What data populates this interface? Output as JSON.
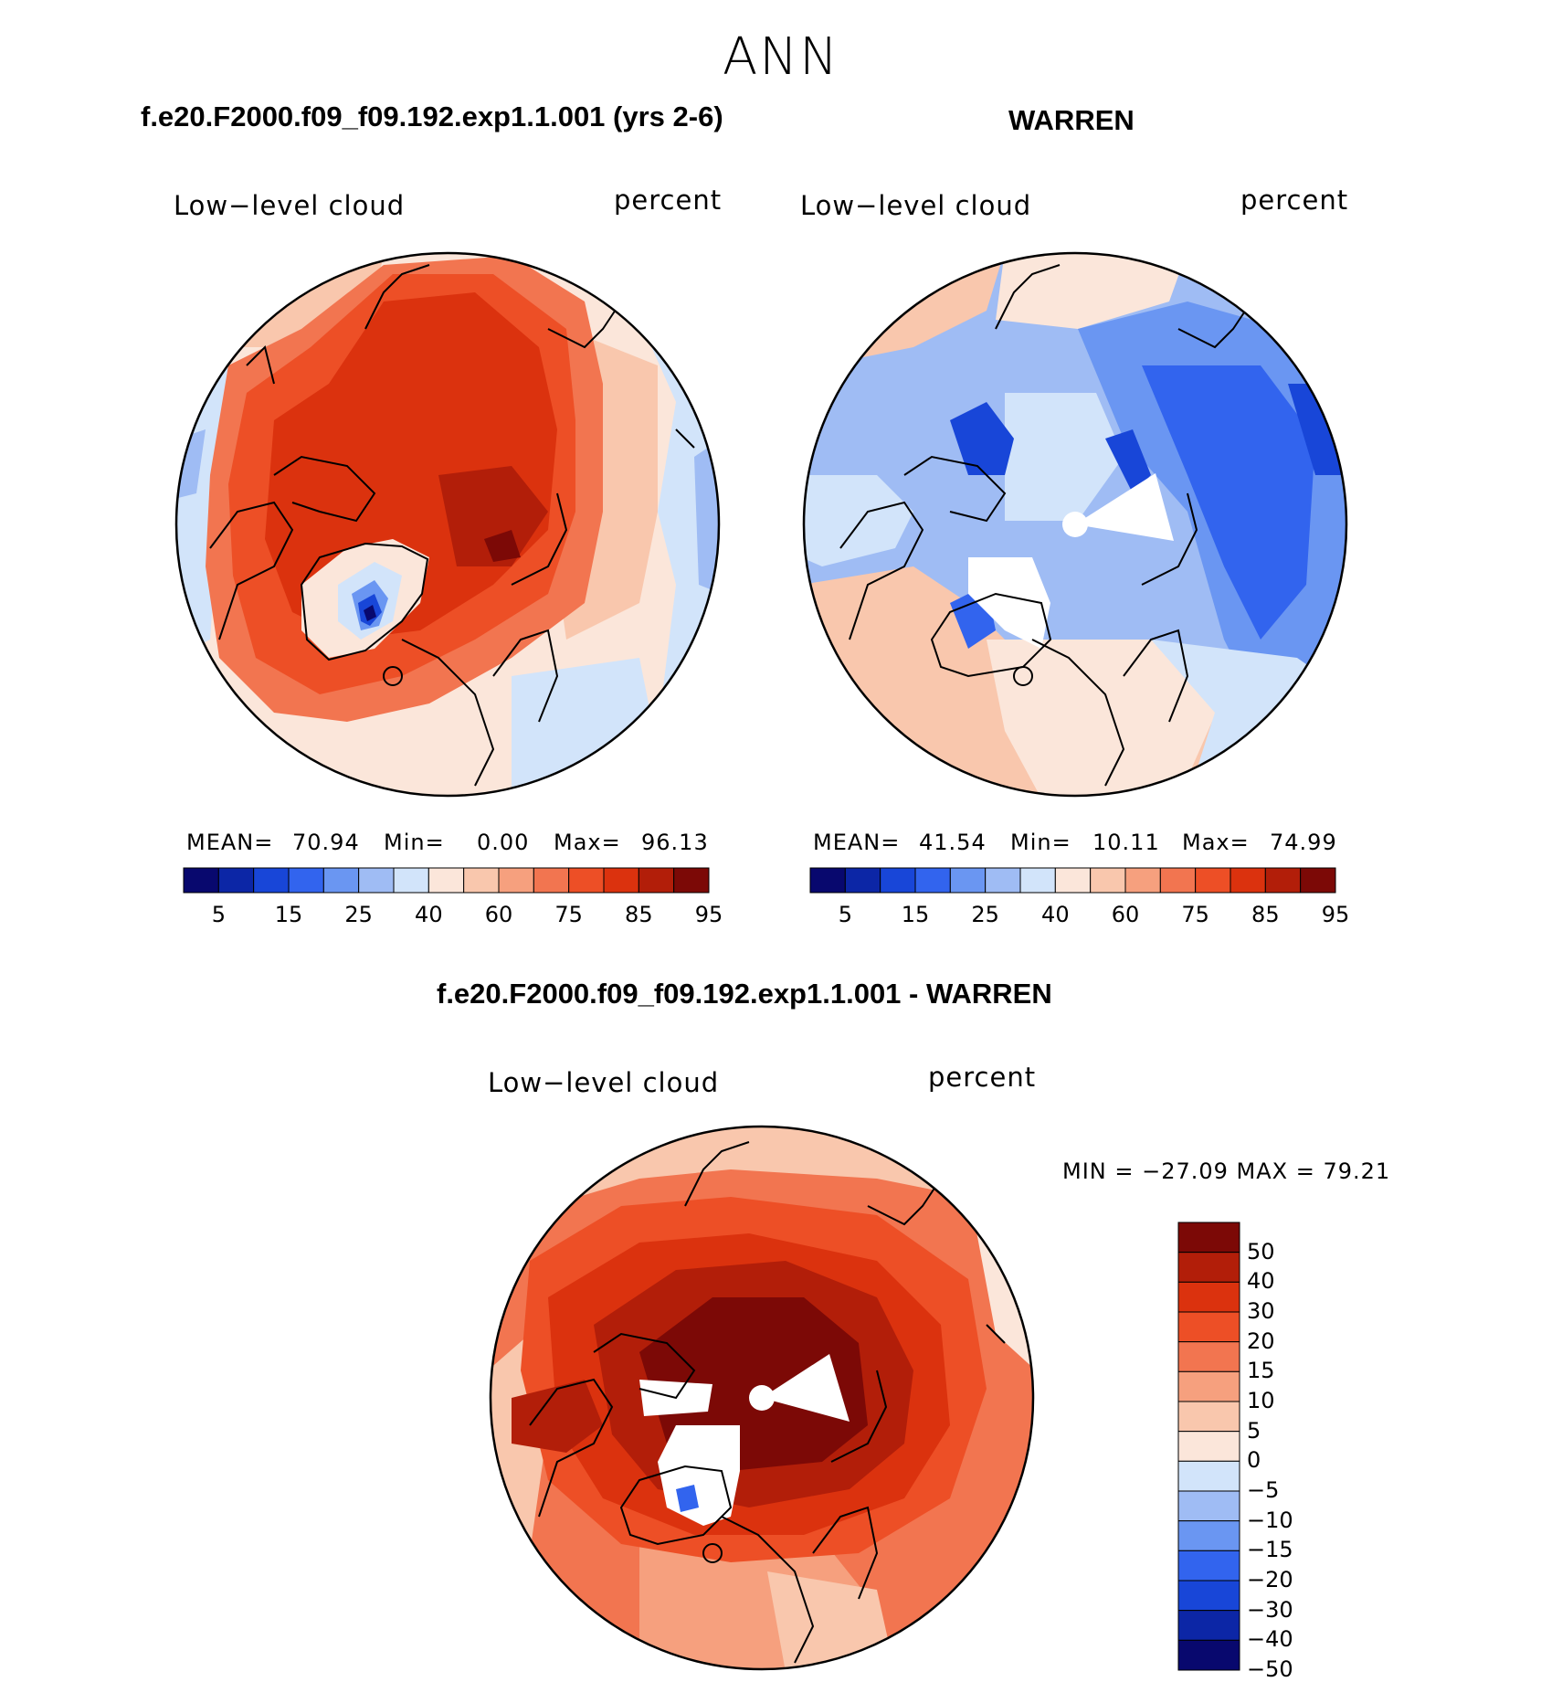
{
  "figure_title": "ANN",
  "panels": [
    {
      "case_title": "f.e20.F2000.f09_f09.192.exp1.1.001 (yrs 2-6)",
      "variable": "Low−level cloud",
      "units": "percent",
      "stats": {
        "mean_label": "MEAN=",
        "mean": "70.94",
        "min_label": "Min=",
        "min": "0.00",
        "max_label": "Max=",
        "max": "96.13"
      }
    },
    {
      "case_title": "WARREN",
      "variable": "Low−level cloud",
      "units": "percent",
      "stats": {
        "mean_label": "MEAN=",
        "mean": "41.54",
        "min_label": "Min=",
        "min": "10.11",
        "max_label": "Max=",
        "max": "74.99"
      }
    },
    {
      "case_title": "f.e20.F2000.f09_f09.192.exp1.1.001 - WARREN",
      "variable": "Low−level cloud",
      "units": "percent",
      "stats_text": "MIN = −27.09 MAX =   79.21"
    }
  ],
  "colorbar_horizontal": {
    "colors": [
      "#08086e",
      "#0c26a6",
      "#1846d8",
      "#3264ee",
      "#6a96f2",
      "#9fbcf4",
      "#d2e4fa",
      "#fbe6da",
      "#f9c7ad",
      "#f6a07e",
      "#f27550",
      "#ed4f26",
      "#db320e",
      "#b21e09",
      "#7c0906"
    ],
    "labels": [
      "5",
      "15",
      "25",
      "40",
      "60",
      "75",
      "85",
      "95"
    ]
  },
  "colorbar_vertical": {
    "colors": [
      "#7c0906",
      "#b21e09",
      "#db320e",
      "#ed4f26",
      "#f27550",
      "#f6a07e",
      "#f9c7ad",
      "#fbe6da",
      "#d2e4fa",
      "#9fbcf4",
      "#6a96f2",
      "#3264ee",
      "#1846d8",
      "#0c26a6",
      "#08086e"
    ],
    "labels": [
      "50",
      "40",
      "30",
      "20",
      "15",
      "10",
      "5",
      "0",
      "−5",
      "−10",
      "−15",
      "−20",
      "−30",
      "−40",
      "−50"
    ]
  }
}
